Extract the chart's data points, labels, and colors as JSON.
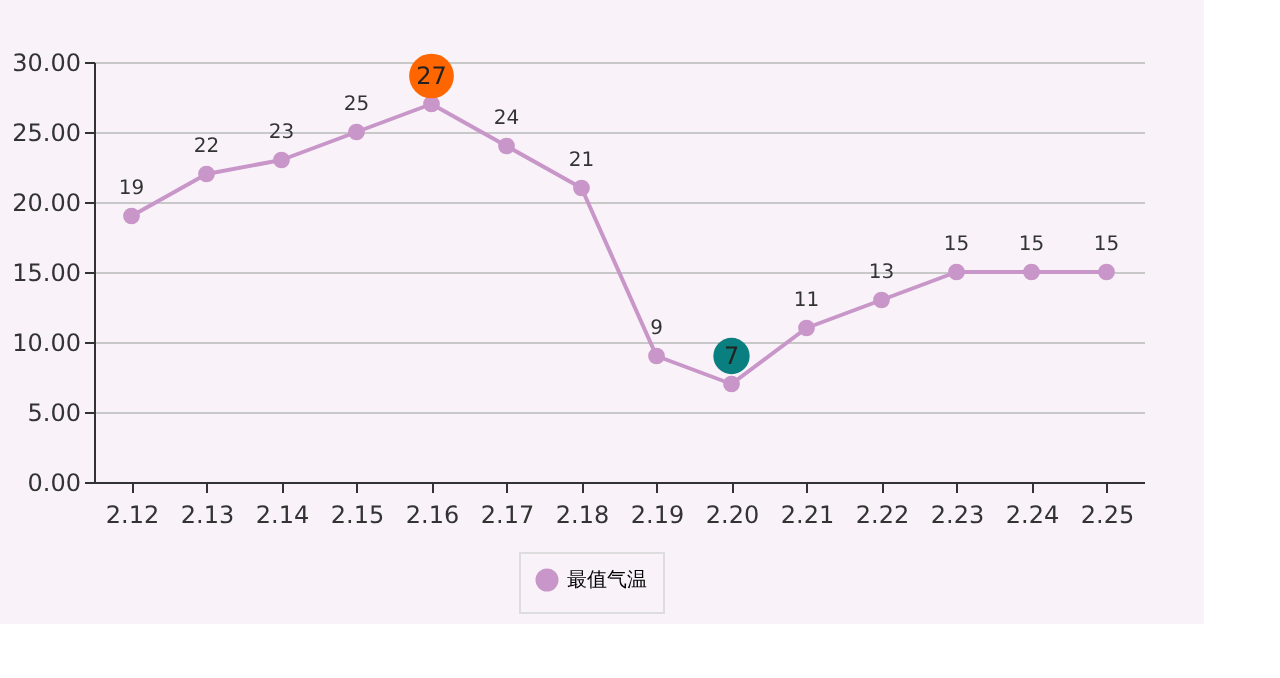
{
  "chart_data": {
    "type": "line",
    "categories": [
      "2.12",
      "2.13",
      "2.14",
      "2.15",
      "2.16",
      "2.17",
      "2.18",
      "2.19",
      "2.20",
      "2.21",
      "2.22",
      "2.23",
      "2.24",
      "2.25"
    ],
    "series": [
      {
        "name": "最值气温",
        "color": "#c896c8",
        "values": [
          19,
          22,
          23,
          25,
          27,
          24,
          21,
          9,
          7,
          11,
          13,
          15,
          15,
          15
        ],
        "value_labels": [
          "19",
          "22",
          "23",
          "25",
          null,
          "24",
          "21",
          "9",
          null,
          "11",
          "13",
          "15",
          "15",
          "15"
        ]
      }
    ],
    "annotations": [
      {
        "text": "27",
        "x": "2.16",
        "y": 27
      },
      {
        "text": "7",
        "x": "2.20",
        "y": 7
      }
    ],
    "ylim": [
      0,
      30
    ],
    "yticks": [
      {
        "value": 0,
        "label": "0.00"
      },
      {
        "value": 5,
        "label": "5.00"
      },
      {
        "value": 10,
        "label": "10.00"
      },
      {
        "value": 15,
        "label": "15.00"
      },
      {
        "value": 20,
        "label": "20.00"
      },
      {
        "value": 25,
        "label": "25.00"
      },
      {
        "value": 30,
        "label": "30.00"
      }
    ],
    "grid": "y",
    "legend": "bottom",
    "marker": "circle",
    "line_style": "solid"
  }
}
